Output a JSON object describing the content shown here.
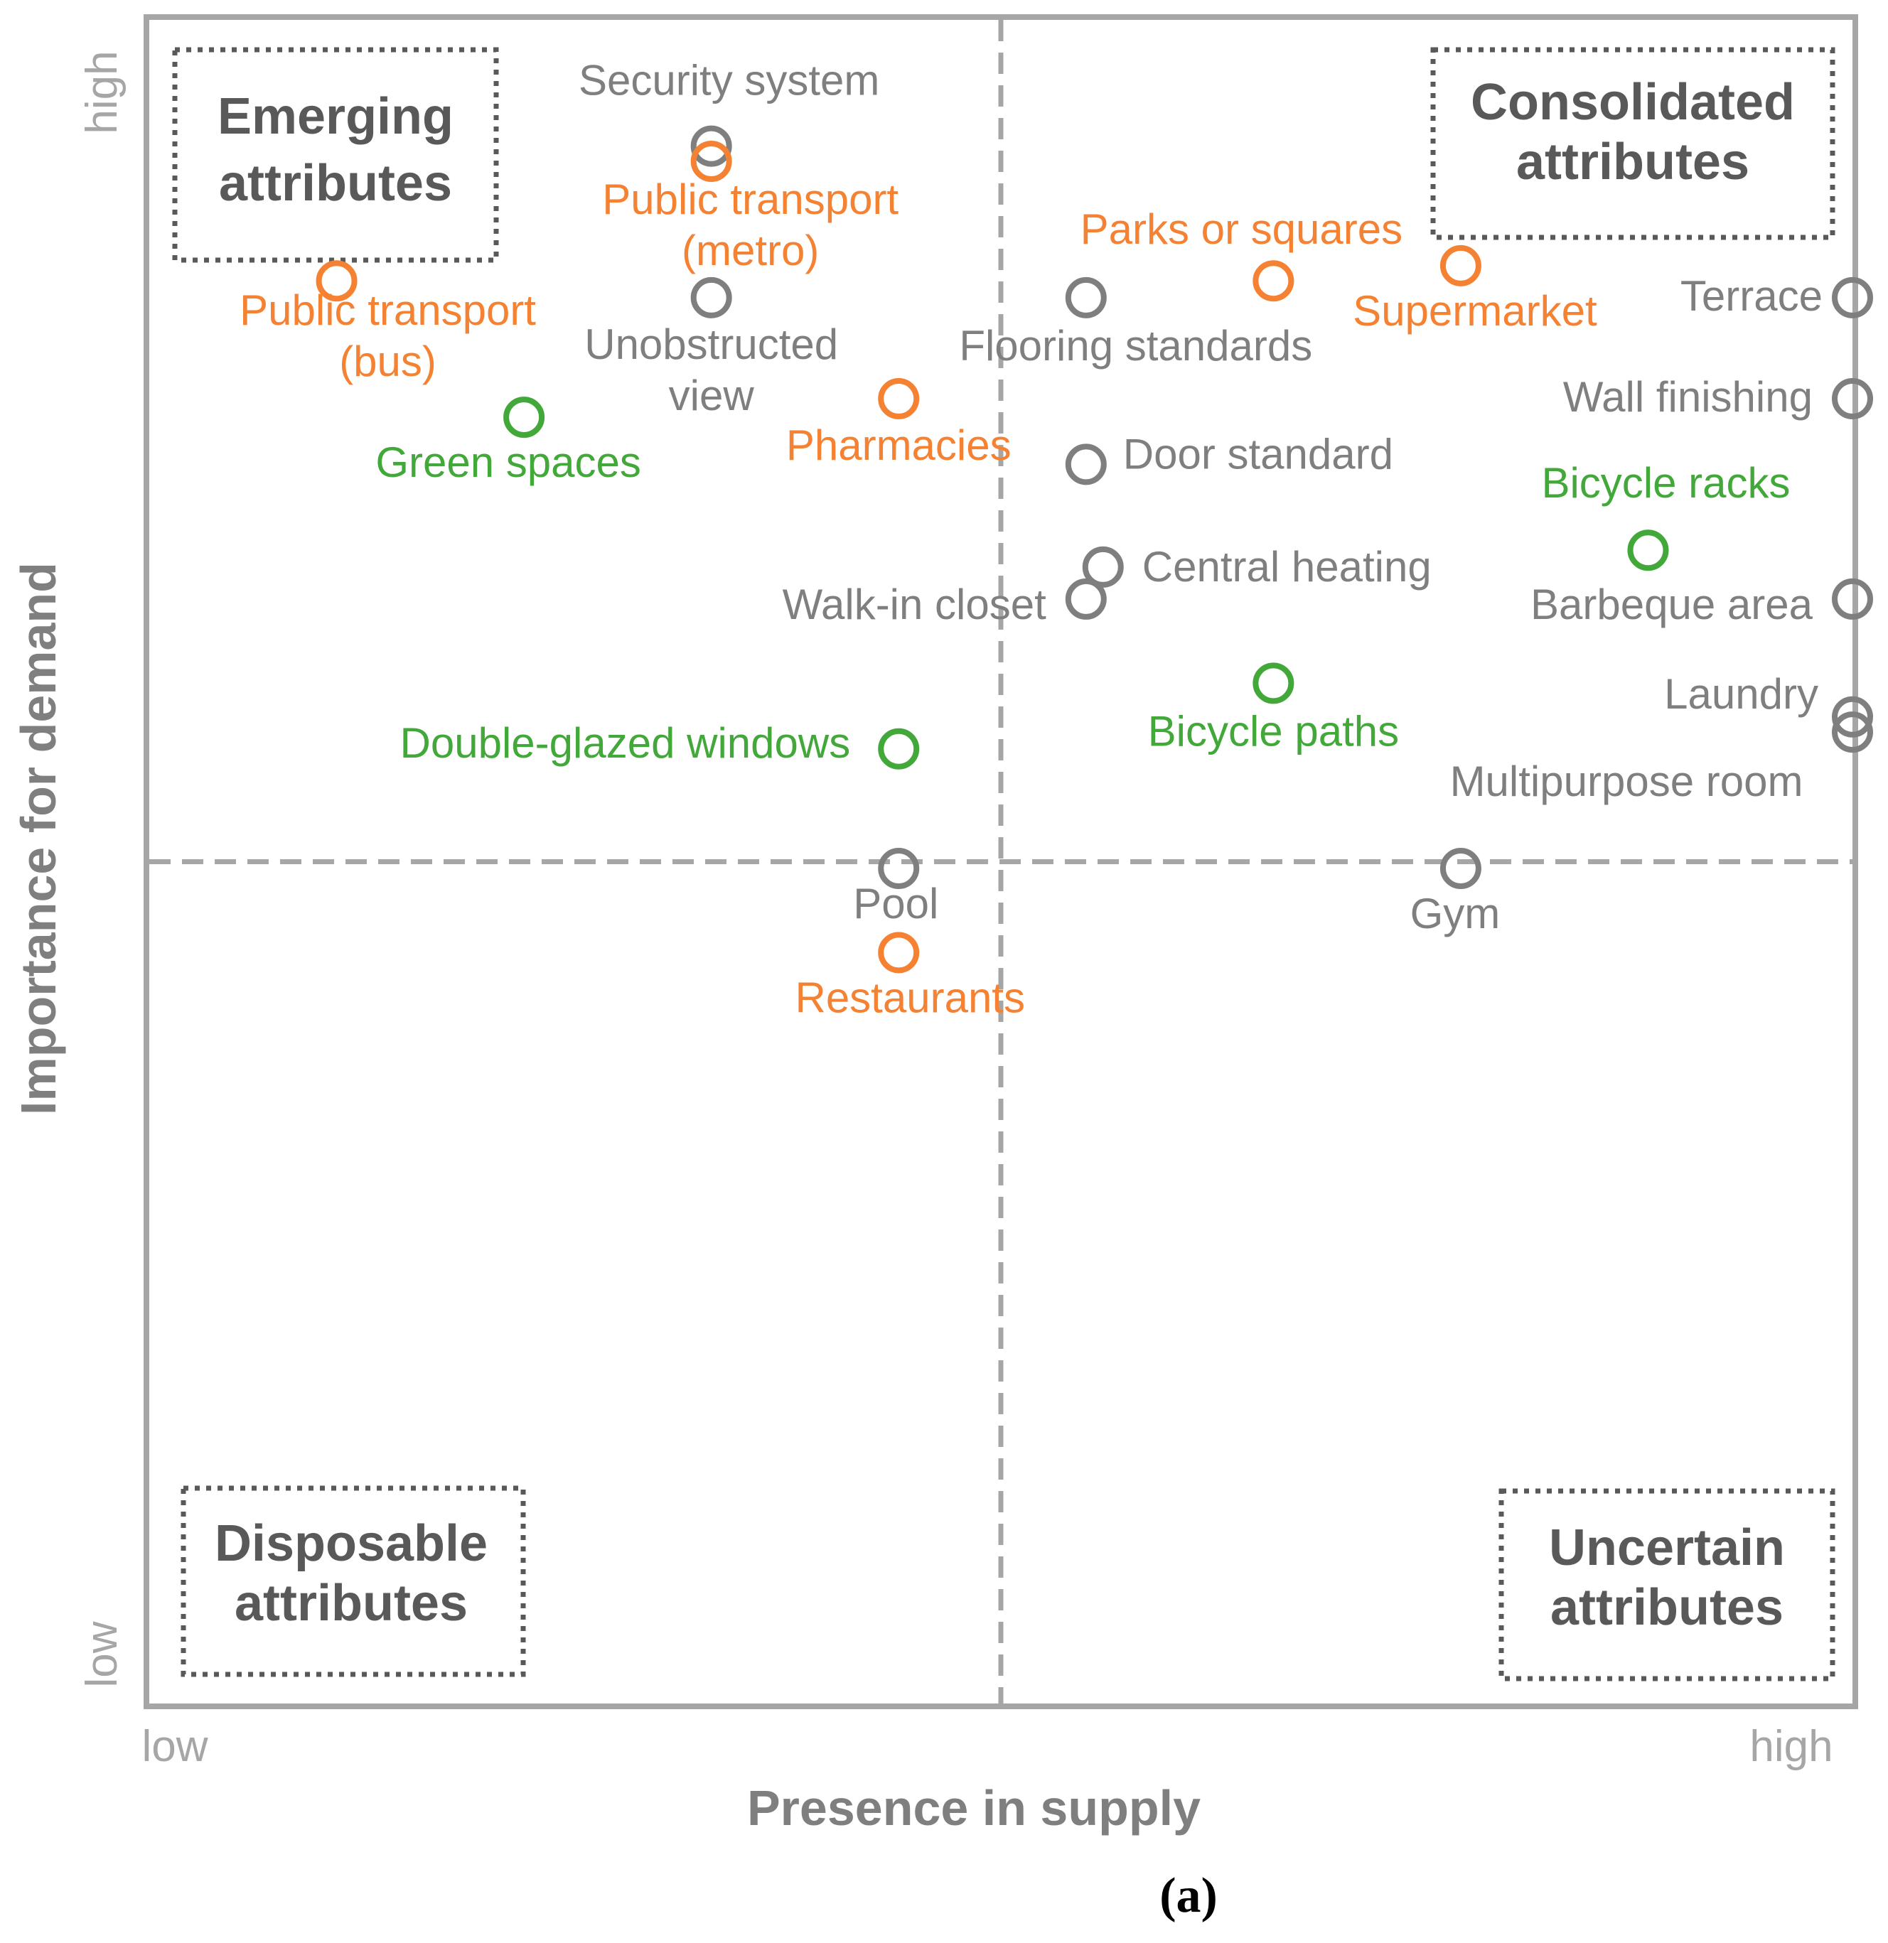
{
  "chart_data": {
    "type": "scatter",
    "title": "",
    "caption": "(a)",
    "xlabel": "Presence in supply",
    "ylabel": "Importance for demand",
    "x_ticks": {
      "low": "low",
      "high": "high"
    },
    "y_ticks": {
      "low": "low",
      "high": "high"
    },
    "xlim": [
      0,
      100
    ],
    "ylim": [
      0,
      100
    ],
    "divider": {
      "x": 50,
      "y": 50
    },
    "grid": false,
    "colors": {
      "orange": "#f58233",
      "green": "#43a83a",
      "gray": "#7f7f7f",
      "frame": "#a6a6a6",
      "quadrant_text": "#595959"
    },
    "quadrants": [
      {
        "name": "emerging",
        "line1": "Emerging",
        "line2": "attributes"
      },
      {
        "name": "consolidated",
        "line1": "Consolidated",
        "line2": "attributes"
      },
      {
        "name": "disposable",
        "line1": "Disposable",
        "line2": "attributes"
      },
      {
        "name": "uncertain",
        "line1": "Uncertain",
        "line2": "attributes"
      }
    ],
    "points": [
      {
        "label": [
          "Security system"
        ],
        "x": 33,
        "y": 92.5,
        "color": "gray"
      },
      {
        "label": [
          "Public transport",
          "(metro)"
        ],
        "x": 33,
        "y": 91.6,
        "color": "orange"
      },
      {
        "label": [
          "Unobstructed",
          "view"
        ],
        "x": 33,
        "y": 83.5,
        "color": "gray"
      },
      {
        "label": [
          "Public transport",
          "(bus)"
        ],
        "x": 11,
        "y": 84.5,
        "color": "orange"
      },
      {
        "label": [
          "Green spaces"
        ],
        "x": 22,
        "y": 76.4,
        "color": "green"
      },
      {
        "label": [
          "Pharmacies"
        ],
        "x": 44,
        "y": 77.5,
        "color": "orange"
      },
      {
        "label": [
          "Flooring standards"
        ],
        "x": 55,
        "y": 83.5,
        "color": "gray"
      },
      {
        "label": [
          "Parks or squares"
        ],
        "x": 66,
        "y": 84.5,
        "color": "orange"
      },
      {
        "label": [
          "Supermarket"
        ],
        "x": 77,
        "y": 85.4,
        "color": "orange"
      },
      {
        "label": [
          "Terrace"
        ],
        "x": 100,
        "y": 83.5,
        "color": "gray"
      },
      {
        "label": [
          "Wall finishing"
        ],
        "x": 100,
        "y": 77.5,
        "color": "gray"
      },
      {
        "label": [
          "Door standard"
        ],
        "x": 55,
        "y": 73.6,
        "color": "gray"
      },
      {
        "label": [
          "Bicycle racks"
        ],
        "x": 88,
        "y": 68.5,
        "color": "green"
      },
      {
        "label": [
          "Central heating"
        ],
        "x": 56,
        "y": 67.5,
        "color": "gray"
      },
      {
        "label": [
          "Walk-in closet"
        ],
        "x": 55,
        "y": 65.6,
        "color": "gray"
      },
      {
        "label": [
          "Barbeque area"
        ],
        "x": 100,
        "y": 65.6,
        "color": "gray"
      },
      {
        "label": [
          "Bicycle paths"
        ],
        "x": 66,
        "y": 60.6,
        "color": "green"
      },
      {
        "label": [
          "Laundry"
        ],
        "x": 100,
        "y": 58.6,
        "color": "gray"
      },
      {
        "label": [
          "Multipurpose room"
        ],
        "x": 100,
        "y": 57.7,
        "color": "gray"
      },
      {
        "label": [
          "Double-glazed windows"
        ],
        "x": 44,
        "y": 56.7,
        "color": "green"
      },
      {
        "label": [
          "Pool"
        ],
        "x": 44,
        "y": 49.6,
        "color": "gray"
      },
      {
        "label": [
          "Gym"
        ],
        "x": 77,
        "y": 49.6,
        "color": "gray"
      },
      {
        "label": [
          "Restaurants"
        ],
        "x": 44,
        "y": 44.6,
        "color": "orange"
      }
    ]
  }
}
